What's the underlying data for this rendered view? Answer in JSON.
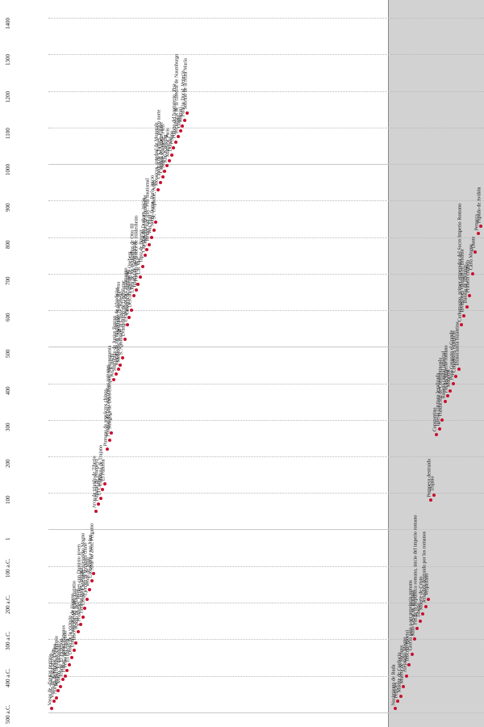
{
  "axis": {
    "ticks": [
      "500 a.C.",
      "400 a.C.",
      "300 a.C.",
      "200 a.C.",
      "100 a.C.",
      "1",
      "100",
      "200",
      "300",
      "400",
      "500",
      "600",
      "700",
      "800",
      "900",
      "1000",
      "1100",
      "1200",
      "1300",
      "1400"
    ]
  },
  "colors": {
    "accent": "#c8102e",
    "panel": "#d2d2d2"
  },
  "art_events": [
    {
      "year": -490,
      "text": "Vasos de «figuras negras»"
    },
    {
      "year": -470,
      "text": "Vasos de «figuras rojas»"
    },
    {
      "year": -460,
      "text": "Auriga de bronce, Delfos"
    },
    {
      "year": -440,
      "text": "Templo de Zeus, Olimpia"
    },
    {
      "year": -430,
      "text": "Mirón: El discóbolo"
    },
    {
      "year": -410,
      "text": "Ictino: El Partenón"
    },
    {
      "year": -400,
      "text": "Fidias: Atenea Pártenos"
    },
    {
      "year": -385,
      "text": "Friso del Partenón"
    },
    {
      "year": -370,
      "text": "El Erecteón"
    },
    {
      "year": -350,
      "text": "Diosa de la victoria"
    },
    {
      "year": -330,
      "text": "Estela funeraria de Hegeso"
    },
    {
      "year": -310,
      "text": "Inscripción del teatro corintio"
    },
    {
      "year": -280,
      "text": "Apolo de Belvedere"
    },
    {
      "year": -260,
      "text": "Praxíteles: Hermes con Dionisio joven"
    },
    {
      "year": -240,
      "text": "Tumbas reales, Vergina"
    },
    {
      "year": -215,
      "text": "Lisipo: Cabeza de Alejandro Magno"
    },
    {
      "year": -190,
      "text": "Ejército de terracota chino"
    },
    {
      "year": -165,
      "text": "Venus de Milo"
    },
    {
      "year": -140,
      "text": "Laocoonte y sus hijos"
    },
    {
      "year": -120,
      "text": "Altar de Zeus, Pérgamo"
    },
    {
      "year": 50,
      "text": "Arco de triunfo de Tiberio"
    },
    {
      "year": 70,
      "text": "Pinturas de Pompeya"
    },
    {
      "year": 85,
      "text": "El Coliseo"
    },
    {
      "year": 110,
      "text": "Columna de Trajano"
    },
    {
      "year": 125,
      "text": "El Panteón"
    },
    {
      "year": 220,
      "text": "Pinturas de sepulcros chinos"
    },
    {
      "year": 245,
      "text": "Pinturas de las catacumbas romanas"
    },
    {
      "year": 265,
      "text": "Sinagoga de Dura-Europos, Mesopotamia"
    },
    {
      "year": 410,
      "text": "Ku K'ai-chi"
    },
    {
      "year": 425,
      "text": "Sarcófago de Junius Bassus"
    },
    {
      "year": 440,
      "text": "Retrato de un magistrado de Afrodisias"
    },
    {
      "year": 450,
      "text": "Mosaicos, S. Apollinare Nuovo, Ravena"
    },
    {
      "year": 470,
      "text": "S. Apollinare in Classe, Ravena"
    },
    {
      "year": 520,
      "text": "Evangeliario de Lindisfarne"
    },
    {
      "year": 560,
      "text": "Evangelios de Carlomagno"
    },
    {
      "year": 580,
      "text": "Catedral de Aquisgrán"
    },
    {
      "year": 600,
      "text": "Descubrimiento de Oseberg"
    },
    {
      "year": 640,
      "text": "Libro de los evangelios de Otto III"
    },
    {
      "year": 655,
      "text": "Iglesia de Earls Barton"
    },
    {
      "year": 670,
      "text": "Puertas de bronce de Hildesheim"
    },
    {
      "year": 690,
      "text": "Las Vaic"
    },
    {
      "year": 720,
      "text": "Tapiz de Bayeux"
    },
    {
      "year": 750,
      "text": "Catedral de Durham, inicio"
    },
    {
      "year": 765,
      "text": "Candelabro de Gloucester"
    },
    {
      "year": 780,
      "text": "Reiner van Huy: Pila bautismal"
    },
    {
      "year": 800,
      "text": "Wat Yuan"
    },
    {
      "year": 820,
      "text": "Notre-Dame, París, inicio"
    },
    {
      "year": 840,
      "text": "St. Trophime, Arlés"
    },
    {
      "year": 930,
      "text": "Mosaicos, catedral de Monreale"
    },
    {
      "year": 950,
      "text": "Catedral de Chartres, pórtico norte"
    },
    {
      "year": 965,
      "text": "Catedral de Amiens, nave"
    },
    {
      "year": 980,
      "text": "Sainte-Chapelle, París"
    },
    {
      "year": 995,
      "text": "Kao K'o-kung"
    },
    {
      "year": 1010,
      "text": "Matthew Paris"
    },
    {
      "year": 1025,
      "text": "Duccio"
    },
    {
      "year": 1045,
      "text": "Pisano"
    },
    {
      "year": 1060,
      "text": "Púlpito del baptisterio, Pisa"
    },
    {
      "year": 1075,
      "text": "Esculturas de la catedral de Naumburgo"
    },
    {
      "year": 1090,
      "text": "Giotto"
    },
    {
      "year": 1105,
      "text": "Martini"
    },
    {
      "year": 1120,
      "text": "Palacio Ducal, Venecia"
    },
    {
      "year": 1140,
      "text": "Sobrino de la reina María"
    }
  ],
  "history_events": [
    {
      "year": -490,
      "text": "Nacimiento de Buda"
    },
    {
      "year": -470,
      "text": "Pericles"
    },
    {
      "year": -455,
      "text": "Muerte de Confucio"
    },
    {
      "year": -430,
      "text": "Muerte de Sócrates"
    },
    {
      "year": -400,
      "text": "Alejandro Magno"
    },
    {
      "year": -370,
      "text": "Teócrito (poeta)"
    },
    {
      "year": -340,
      "text": "Grecia pasa a ser provincia romana"
    },
    {
      "year": -300,
      "text": "Julio César en Britania"
    },
    {
      "year": -270,
      "text": "Fin de la República romana, inicio del imperio romano"
    },
    {
      "year": -250,
      "text": "Tiberio"
    },
    {
      "year": -230,
      "text": "Muerte de Cristo"
    },
    {
      "year": -210,
      "text": "Jerusalén destruida por los romanos"
    },
    {
      "year": -190,
      "text": "Vespasiano"
    },
    {
      "year": 80,
      "text": "Pompeya destruida"
    },
    {
      "year": 95,
      "text": "Trajano"
    },
    {
      "year": 260,
      "text": "Constantino"
    },
    {
      "year": 275,
      "text": "Iglesia cristiana legalizada"
    },
    {
      "year": 300,
      "text": "Fundación de Constantinopla"
    },
    {
      "year": 350,
      "text": "Ravena capital imperial"
    },
    {
      "year": 365,
      "text": "Fin del Imperio romano"
    },
    {
      "year": 380,
      "text": "Mahoma"
    },
    {
      "year": 400,
      "text": "Papa Gregorio el Grande"
    },
    {
      "year": 420,
      "text": "Conquistas islámicas"
    },
    {
      "year": 440,
      "text": "Iconoclastia bizantina"
    },
    {
      "year": 560,
      "text": "Carlomagno, primer emperador del Sacro Imperio Romano"
    },
    {
      "year": 585,
      "text": "Invasiones vikingas en Britania"
    },
    {
      "year": 610,
      "text": "Batalla de Hastings"
    },
    {
      "year": 640,
      "text": "Primera cruzada"
    },
    {
      "year": 700,
      "text": "Carta Magna"
    },
    {
      "year": 760,
      "text": "Dante"
    },
    {
      "year": 810,
      "text": "Petrarca"
    },
    {
      "year": 830,
      "text": "Papado de Aviñón"
    }
  ]
}
